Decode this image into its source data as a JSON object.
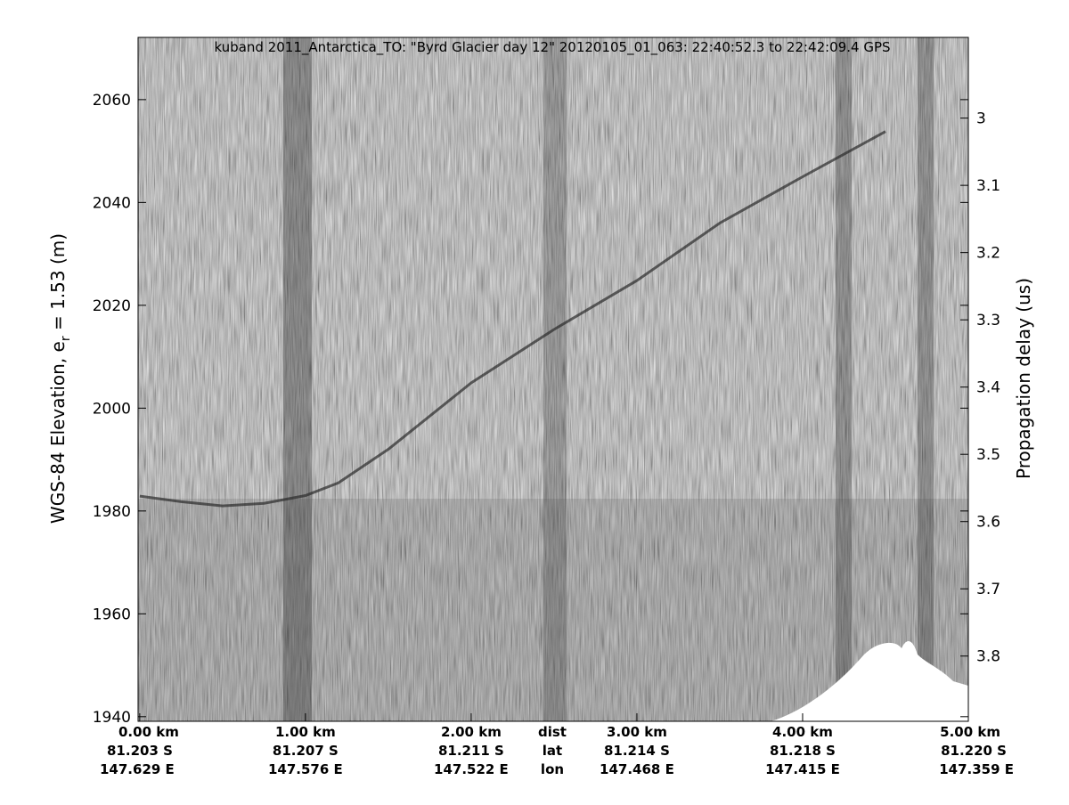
{
  "chart_data": {
    "type": "line",
    "title": "kuband 2011_Antarctica_TO: \"Byrd Glacier day 12\"  20120105_01_063: 22:40:52.3 to 22:42:09.4 GPS",
    "ylabel": {
      "text": "WGS-84 Elevation, e",
      "subscript": "r",
      "suffix": " = 1.53 (m)"
    },
    "y2label": "Propagation delay (us)",
    "x": [
      0,
      0.25,
      0.5,
      0.75,
      1.0,
      1.2,
      1.5,
      2.0,
      2.5,
      3.0,
      3.5,
      4.0,
      4.5
    ],
    "values": [
      1982.9,
      1981.8,
      1981,
      1981.5,
      1983,
      1985.5,
      1992,
      2004.9,
      2015.3,
      2024.8,
      2036,
      2045,
      2053.8
    ],
    "color": "#2a2a2a",
    "xlim": [
      -0.01,
      5.0
    ],
    "xticks": [
      {
        "value": 0,
        "label": "0.00 km"
      },
      {
        "value": 1,
        "label": "1.00 km"
      },
      {
        "value": 2,
        "label": "2.00 km"
      },
      {
        "value": 3,
        "label": "3.00 km"
      },
      {
        "value": 4,
        "label": "4.00 km"
      },
      {
        "value": 5,
        "label": "5.00 km"
      }
    ],
    "lat_labels": [
      "81.203 S",
      "81.207 S",
      "81.211 S",
      "81.214 S",
      "81.218 S",
      "81.220 S"
    ],
    "lon_labels": [
      "147.629 E",
      "147.576 E",
      "147.522 E",
      "147.468 E",
      "147.415 E",
      "147.359 E"
    ],
    "x_row_labels": [
      "dist",
      "lat",
      "lon"
    ],
    "ylim": [
      1939.1,
      2072.1
    ],
    "yticks": [
      1940,
      1960,
      1980,
      2000,
      2020,
      2040,
      2060
    ],
    "y2lim": [
      3.897,
      2.88
    ],
    "y2ticks": [
      3,
      3.1,
      3.2,
      3.3,
      3.4,
      3.5,
      3.6,
      3.7,
      3.8
    ]
  }
}
